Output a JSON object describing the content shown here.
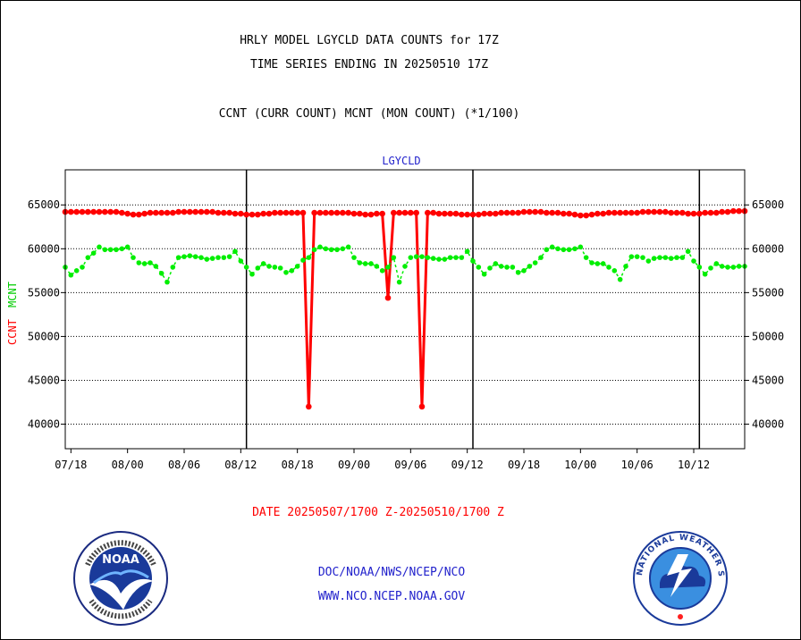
{
  "header": {
    "title_line1": "HRLY MODEL LGYCLD DATA COUNTS for 17Z",
    "title_line2": "TIME SERIES ENDING IN 20250510 17Z",
    "subtitle": "CCNT (CURR COUNT) MCNT (MON COUNT) (*1/100)"
  },
  "footer": {
    "date_range": "DATE 20250507/1700 Z-20250510/1700 Z",
    "line1": "DOC/NOAA/NWS/NCEP/NCO",
    "line2": "WWW.NCO.NCEP.NOAA.GOV"
  },
  "logos": {
    "left": {
      "icon": "noaa-logo",
      "text": "NOAA"
    },
    "right": {
      "icon": "nws-logo",
      "text": "NATIONAL WEATHER SERVICE"
    }
  },
  "colors": {
    "ccnt": "#ff0000",
    "mcnt": "#00ee00",
    "axis": "#000000",
    "panel_label": "#2222cc"
  },
  "chart_data": {
    "type": "line",
    "panel_label": "LGYCLD",
    "ylabel_left_ccnt": "CCNT",
    "ylabel_left_mcnt": "MCNT",
    "ylim": [
      37200,
      69000
    ],
    "xlim": [
      0,
      120
    ],
    "y_ticks": [
      40000,
      45000,
      50000,
      55000,
      60000,
      65000
    ],
    "y_tick_labels": [
      "40000",
      "45000",
      "50000",
      "55000",
      "60000",
      "65000"
    ],
    "x_ticks": [
      {
        "label": "07/18",
        "x": 1
      },
      {
        "label": "08/00",
        "x": 11
      },
      {
        "label": "08/06",
        "x": 21
      },
      {
        "label": "08/12",
        "x": 31
      },
      {
        "label": "08/18",
        "x": 41
      },
      {
        "label": "09/00",
        "x": 51
      },
      {
        "label": "09/06",
        "x": 61
      },
      {
        "label": "09/12",
        "x": 71
      },
      {
        "label": "09/18",
        "x": 81
      },
      {
        "label": "10/00",
        "x": 91
      },
      {
        "label": "10/06",
        "x": 101
      },
      {
        "label": "10/12",
        "x": 111
      }
    ],
    "day_boundaries": [
      32,
      72,
      112
    ],
    "grid": "horizontal-dotted",
    "series": [
      {
        "name": "CCNT",
        "color": "#ff0000",
        "values": [
          64200,
          64200,
          64200,
          64200,
          64200,
          64200,
          64200,
          64200,
          64200,
          64200,
          64100,
          64000,
          63900,
          63900,
          64000,
          64100,
          64100,
          64100,
          64100,
          64100,
          64200,
          64200,
          64200,
          64200,
          64200,
          64200,
          64200,
          64100,
          64100,
          64100,
          64000,
          64000,
          63900,
          63900,
          63900,
          64000,
          64000,
          64100,
          64100,
          64100,
          64100,
          64100,
          64100,
          42000,
          64100,
          64100,
          64100,
          64100,
          64100,
          64100,
          64100,
          64000,
          64000,
          63900,
          63900,
          64000,
          64000,
          54400,
          64100,
          64100,
          64100,
          64100,
          64100,
          42000,
          64100,
          64100,
          64000,
          64000,
          64000,
          64000,
          63900,
          63900,
          63900,
          63900,
          64000,
          64000,
          64000,
          64100,
          64100,
          64100,
          64100,
          64200,
          64200,
          64200,
          64200,
          64100,
          64100,
          64100,
          64000,
          64000,
          63900,
          63800,
          63800,
          63900,
          64000,
          64000,
          64100,
          64100,
          64100,
          64100,
          64100,
          64100,
          64200,
          64200,
          64200,
          64200,
          64200,
          64100,
          64100,
          64100,
          64000,
          64000,
          64000,
          64100,
          64100,
          64100,
          64200,
          64200,
          64300,
          64300,
          64300
        ]
      },
      {
        "name": "MCNT",
        "color": "#00ee00",
        "values": [
          57900,
          57000,
          57500,
          57900,
          59000,
          59500,
          60200,
          59900,
          59900,
          59900,
          60000,
          60200,
          59000,
          58400,
          58300,
          58400,
          58000,
          57200,
          56200,
          57900,
          59000,
          59100,
          59200,
          59100,
          59000,
          58800,
          58900,
          59000,
          59000,
          59100,
          59700,
          58600,
          57900,
          57100,
          57800,
          58300,
          58000,
          57900,
          57800,
          57300,
          57500,
          58000,
          58700,
          59000,
          59900,
          60200,
          60000,
          59900,
          59900,
          60000,
          60200,
          59000,
          58400,
          58300,
          58300,
          58000,
          57500,
          57900,
          59000,
          56200,
          58000,
          59000,
          59100,
          59100,
          59000,
          58900,
          58800,
          58800,
          59000,
          59000,
          59000,
          59700,
          58600,
          57900,
          57100,
          57800,
          58300,
          58000,
          57900,
          57900,
          57300,
          57500,
          58000,
          58400,
          59000,
          59900,
          60200,
          60000,
          59900,
          59900,
          60000,
          60200,
          59000,
          58400,
          58300,
          58300,
          57900,
          57500,
          56500,
          58000,
          59100,
          59100,
          59000,
          58600,
          58900,
          59000,
          59000,
          58900,
          59000,
          59000,
          59700,
          58600,
          57900,
          57100,
          57800,
          58300,
          58000,
          57900,
          57900,
          58000,
          58000
        ]
      }
    ]
  }
}
